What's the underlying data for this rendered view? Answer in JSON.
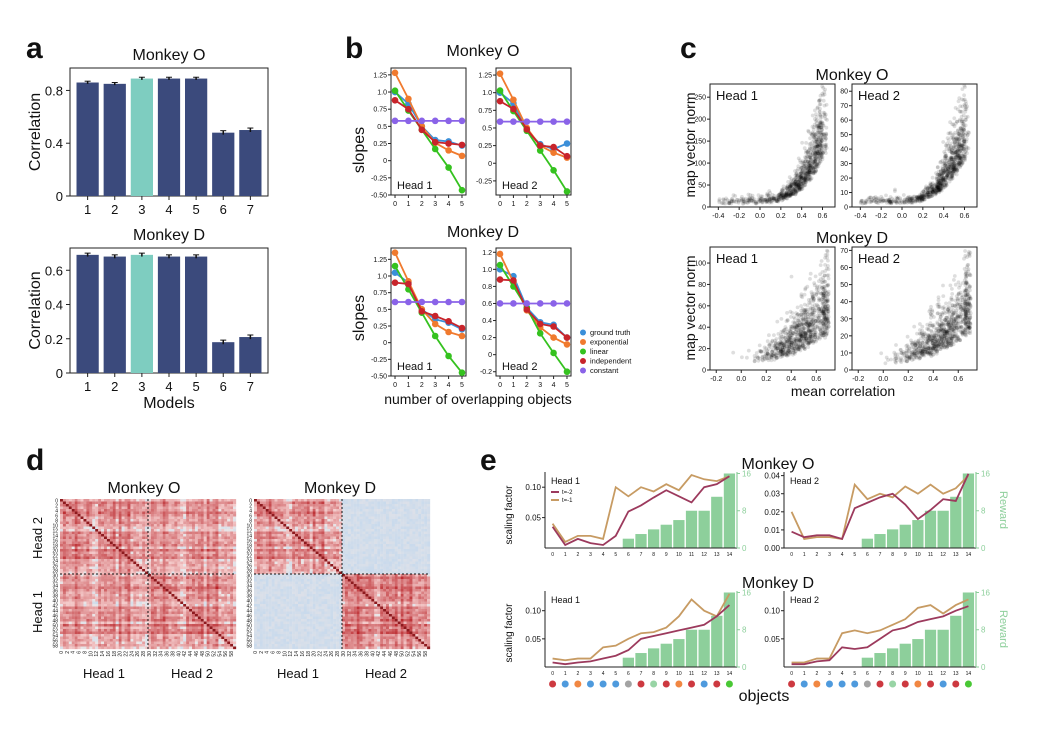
{
  "panel_letters": [
    "a",
    "b",
    "c",
    "d",
    "e"
  ],
  "colors": {
    "navy": "#3b4a7c",
    "teal": "#7ecdc0",
    "ground_truth": "#3b8fd9",
    "exponential": "#f07a2e",
    "linear": "#35c21f",
    "independent": "#c8242b",
    "constant": "#8a63e8",
    "reward": "#8dcf9b",
    "t_minus_2": "#9c3a5d",
    "t_minus_1": "#c79b63",
    "scatter": "#000000",
    "heat_red": "#c42a32",
    "heat_blue": "#b9d3ea"
  },
  "chart_data": [
    {
      "panel": "a",
      "type": "bar",
      "subplots": [
        {
          "title": "Monkey O",
          "ylabel": "Correlation",
          "xlabel": "",
          "categories": [
            "1",
            "2",
            "3",
            "4",
            "5",
            "6",
            "7"
          ],
          "values": [
            0.86,
            0.85,
            0.89,
            0.89,
            0.89,
            0.48,
            0.5
          ],
          "errors": [
            0.01,
            0.01,
            0.01,
            0.01,
            0.01,
            0.015,
            0.015
          ],
          "highlight_index": 2,
          "ylim": [
            0,
            0.97
          ],
          "yticks": [
            "0",
            "0.4",
            "0.8"
          ],
          "ytick_values": [
            0,
            0.4,
            0.8
          ]
        },
        {
          "title": "Monkey D",
          "ylabel": "Correlation",
          "xlabel": "Models",
          "categories": [
            "1",
            "2",
            "3",
            "4",
            "5",
            "6",
            "7"
          ],
          "values": [
            0.69,
            0.68,
            0.69,
            0.68,
            0.68,
            0.18,
            0.21
          ],
          "errors": [
            0.01,
            0.01,
            0.01,
            0.01,
            0.01,
            0.012,
            0.012
          ],
          "highlight_index": 2,
          "ylim": [
            0,
            0.73
          ],
          "yticks": [
            "0",
            "0.2",
            "0.4",
            "0.6"
          ],
          "ytick_values": [
            0,
            0.2,
            0.4,
            0.6
          ]
        }
      ]
    },
    {
      "panel": "b",
      "type": "line",
      "ylabel": "slopes",
      "xlabel": "number of overlapping objects",
      "x": [
        0,
        1,
        2,
        3,
        4,
        5
      ],
      "legend": [
        "ground truth",
        "exponential",
        "linear",
        "independent",
        "constant"
      ],
      "series_keys": [
        "ground_truth",
        "exponential",
        "linear",
        "independent",
        "constant"
      ],
      "monkeys": [
        {
          "title": "Monkey O",
          "heads": [
            {
              "label": "Head 1",
              "ylim": [
                -0.5,
                1.35
              ],
              "yticks": [
                "-0.50",
                "-0.25",
                "0",
                "0.25",
                "0.5",
                "0.75",
                "1.0",
                "1.25"
              ],
              "ytick_values": [
                -0.5,
                -0.25,
                0,
                0.25,
                0.5,
                0.75,
                1.0,
                1.25
              ],
              "series": {
                "ground_truth": [
                  1.0,
                  0.83,
                  0.5,
                  0.3,
                  0.28,
                  0.22
                ],
                "exponential": [
                  1.28,
                  0.9,
                  0.5,
                  0.26,
                  0.15,
                  0.07
                ],
                "linear": [
                  1.02,
                  0.73,
                  0.45,
                  0.17,
                  -0.1,
                  -0.43
                ],
                "independent": [
                  0.88,
                  0.75,
                  0.45,
                  0.27,
                  0.25,
                  0.23
                ],
                "constant": [
                  0.58,
                  0.58,
                  0.58,
                  0.58,
                  0.58,
                  0.58
                ]
              }
            },
            {
              "label": "Head 2",
              "ylim": [
                -0.45,
                1.35
              ],
              "yticks": [
                "-0.25",
                "0",
                "0.25",
                "0.5",
                "0.75",
                "1.0",
                "1.25"
              ],
              "ytick_values": [
                -0.25,
                0,
                0.25,
                0.5,
                0.75,
                1.0,
                1.25
              ],
              "series": {
                "ground_truth": [
                  1.0,
                  0.85,
                  0.47,
                  0.27,
                  0.2,
                  0.28
                ],
                "exponential": [
                  1.27,
                  0.9,
                  0.5,
                  0.25,
                  0.15,
                  0.08
                ],
                "linear": [
                  1.03,
                  0.74,
                  0.46,
                  0.18,
                  -0.1,
                  -0.4
                ],
                "independent": [
                  0.88,
                  0.77,
                  0.48,
                  0.25,
                  0.23,
                  0.1
                ],
                "constant": [
                  0.59,
                  0.59,
                  0.59,
                  0.59,
                  0.59,
                  0.59
                ]
              }
            }
          ]
        },
        {
          "title": "Monkey D",
          "heads": [
            {
              "label": "Head 1",
              "ylim": [
                -0.5,
                1.42
              ],
              "yticks": [
                "-0.50",
                "-0.25",
                "0",
                "0.25",
                "0.5",
                "0.75",
                "1.0",
                "1.25"
              ],
              "ytick_values": [
                -0.5,
                -0.25,
                0,
                0.25,
                0.5,
                0.75,
                1.0,
                1.25
              ],
              "series": {
                "ground_truth": [
                  1.05,
                  0.9,
                  0.5,
                  0.35,
                  0.3,
                  0.2
                ],
                "exponential": [
                  1.35,
                  0.92,
                  0.5,
                  0.28,
                  0.16,
                  0.1
                ],
                "linear": [
                  1.15,
                  0.8,
                  0.45,
                  0.1,
                  -0.2,
                  -0.45
                ],
                "independent": [
                  0.9,
                  0.88,
                  0.47,
                  0.4,
                  0.32,
                  0.22
                ],
                "constant": [
                  0.61,
                  0.61,
                  0.61,
                  0.61,
                  0.61,
                  0.61
                ]
              }
            },
            {
              "label": "Head 2",
              "ylim": [
                -0.25,
                1.25
              ],
              "yticks": [
                "-0.2",
                "0",
                "0.2",
                "0.4",
                "0.6",
                "0.8",
                "1.0",
                "1.2"
              ],
              "ytick_values": [
                -0.2,
                0,
                0.2,
                0.4,
                0.6,
                0.8,
                1.0,
                1.2
              ],
              "series": {
                "ground_truth": [
                  1.0,
                  0.92,
                  0.55,
                  0.38,
                  0.35,
                  0.2
                ],
                "exponential": [
                  1.18,
                  0.85,
                  0.52,
                  0.32,
                  0.2,
                  0.12
                ],
                "linear": [
                  1.05,
                  0.8,
                  0.55,
                  0.25,
                  0.02,
                  -0.2
                ],
                "independent": [
                  0.88,
                  0.87,
                  0.53,
                  0.36,
                  0.33,
                  0.2
                ],
                "constant": [
                  0.6,
                  0.6,
                  0.6,
                  0.6,
                  0.6,
                  0.6
                ]
              }
            }
          ]
        }
      ]
    },
    {
      "panel": "c",
      "type": "scatter",
      "ylabel": "map vector norm",
      "xlabel": "mean correlation",
      "xticks": [
        "-0.4",
        "-0.2",
        "0.0",
        "0.2",
        "0.4",
        "0.6"
      ],
      "xtick_values": [
        -0.4,
        -0.2,
        0,
        0.2,
        0.4,
        0.6
      ],
      "xticks_d": [
        "-0.2",
        "0.0",
        "0.2",
        "0.4",
        "0.6"
      ],
      "xtick_values_d": [
        -0.2,
        0,
        0.2,
        0.4,
        0.6
      ],
      "monkeys": [
        {
          "title": "Monkey O",
          "heads": [
            {
              "label": "Head 1",
              "xlim": [
                -0.48,
                0.72
              ],
              "ylim": [
                0,
                280
              ],
              "yticks": [
                "0",
                "50",
                "100",
                "150",
                "200",
                "250"
              ],
              "ytick_values": [
                0,
                50,
                100,
                150,
                200,
                250
              ]
            },
            {
              "label": "Head 2",
              "xlim": [
                -0.48,
                0.72
              ],
              "ylim": [
                0,
                85
              ],
              "yticks": [
                "0",
                "10",
                "20",
                "30",
                "40",
                "50",
                "60",
                "70",
                "80"
              ],
              "ytick_values": [
                0,
                10,
                20,
                30,
                40,
                50,
                60,
                70,
                80
              ]
            }
          ]
        },
        {
          "title": "Monkey D",
          "heads": [
            {
              "label": "Head 1",
              "xlim": [
                -0.25,
                0.75
              ],
              "ylim": [
                0,
                115
              ],
              "yticks": [
                "0",
                "20",
                "40",
                "60",
                "80",
                "100"
              ],
              "ytick_values": [
                0,
                20,
                40,
                60,
                80,
                100
              ]
            },
            {
              "label": "Head 2",
              "xlim": [
                -0.25,
                0.75
              ],
              "ylim": [
                0,
                72
              ],
              "yticks": [
                "0",
                "10",
                "20",
                "30",
                "40",
                "50",
                "60",
                "70"
              ],
              "ytick_values": [
                0,
                10,
                20,
                30,
                40,
                50,
                60,
                70
              ]
            }
          ]
        }
      ]
    },
    {
      "panel": "d",
      "type": "heatmap",
      "monkeys": [
        {
          "title": "Monkey O",
          "structure": "heads_correlated"
        },
        {
          "title": "Monkey D",
          "structure": "block_diagonal"
        }
      ],
      "row_labels": [
        "Head 2",
        "Head 1"
      ],
      "col_labels": [
        "Head 1",
        "Head 2"
      ],
      "tick_labels": [
        "0",
        "2",
        "4",
        "6",
        "8",
        "10",
        "12",
        "14",
        "16",
        "18",
        "20",
        "22",
        "24",
        "26",
        "28",
        "30",
        "32",
        "34",
        "36",
        "38",
        "40",
        "42",
        "44",
        "46",
        "48",
        "50",
        "52",
        "54",
        "56",
        "58"
      ],
      "size": 60
    },
    {
      "panel": "e",
      "type": "bar+line",
      "ylabel": "scaling factor",
      "ylabel_right": "Reward",
      "xlabel": "objects",
      "x": [
        0,
        1,
        2,
        3,
        4,
        5,
        6,
        7,
        8,
        9,
        10,
        11,
        12,
        13,
        14
      ],
      "x_tick_labels": [
        "0",
        "1",
        "2",
        "3",
        "4",
        "5",
        "6",
        "7",
        "8",
        "9",
        "10",
        "11",
        "12",
        "13",
        "14"
      ],
      "legend": [
        "t=-2",
        "t=-1"
      ],
      "reward": [
        0,
        0,
        0,
        0,
        0,
        0,
        2,
        3,
        4,
        5,
        6,
        8,
        8,
        11,
        16
      ],
      "reward_ticks": [
        "0",
        "8",
        "16"
      ],
      "reward_tick_values": [
        0,
        8,
        16
      ],
      "monkeys": [
        {
          "title": "Monkey O",
          "heads": [
            {
              "label": "Head 1",
              "ylim": [
                0,
                0.125
              ],
              "yticks": [
                "0.05",
                "0.10"
              ],
              "ytick_values": [
                0.05,
                0.1
              ],
              "t_minus_2": [
                0.035,
                0.005,
                0.015,
                0.008,
                0.005,
                0.02,
                0.06,
                0.07,
                0.083,
                0.095,
                0.085,
                0.075,
                0.1,
                0.105,
                0.118
              ],
              "t_minus_1": [
                0.04,
                0.01,
                0.02,
                0.02,
                0.015,
                0.1,
                0.085,
                0.1,
                0.093,
                0.105,
                0.095,
                0.12,
                0.113,
                0.11,
                0.118
              ]
            },
            {
              "label": "Head 2",
              "ylim": [
                0,
                0.042
              ],
              "yticks": [
                "0.00",
                "0.01",
                "0.02",
                "0.03",
                "0.04"
              ],
              "ytick_values": [
                0,
                0.01,
                0.02,
                0.03,
                0.04
              ],
              "t_minus_2": [
                0.009,
                0.006,
                0.007,
                0.007,
                0.005,
                0.022,
                0.025,
                0.028,
                0.03,
                0.024,
                0.016,
                0.021,
                0.027,
                0.026,
                0.041
              ],
              "t_minus_1": [
                0.02,
                0.005,
                0.006,
                0.006,
                0.005,
                0.035,
                0.027,
                0.03,
                0.028,
                0.034,
                0.03,
                0.035,
                0.03,
                0.033,
                0.04
              ]
            }
          ]
        },
        {
          "title": "Monkey D",
          "heads": [
            {
              "label": "Head 1",
              "ylim": [
                0,
                0.135
              ],
              "yticks": [
                "0.05",
                "0.10"
              ],
              "ytick_values": [
                0.05,
                0.1
              ],
              "t_minus_2": [
                0.008,
                0.005,
                0.008,
                0.01,
                0.015,
                0.02,
                0.03,
                0.05,
                0.055,
                0.06,
                0.065,
                0.07,
                0.075,
                0.09,
                0.11
              ],
              "t_minus_1": [
                0.015,
                0.012,
                0.015,
                0.015,
                0.035,
                0.038,
                0.05,
                0.06,
                0.062,
                0.07,
                0.09,
                0.12,
                0.1,
                0.09,
                0.13
              ]
            },
            {
              "label": "Head 2",
              "ylim": [
                0,
                0.135
              ],
              "yticks": [
                "0.05",
                "0.10"
              ],
              "ytick_values": [
                0.05,
                0.1
              ],
              "t_minus_2": [
                0.005,
                0.005,
                0.01,
                0.012,
                0.035,
                0.032,
                0.035,
                0.05,
                0.065,
                0.07,
                0.08,
                0.085,
                0.09,
                0.1,
                0.108
              ],
              "t_minus_1": [
                0.008,
                0.008,
                0.015,
                0.015,
                0.06,
                0.065,
                0.06,
                0.065,
                0.075,
                0.085,
                0.105,
                0.11,
                0.095,
                0.11,
                0.12
              ]
            }
          ]
        }
      ]
    }
  ]
}
